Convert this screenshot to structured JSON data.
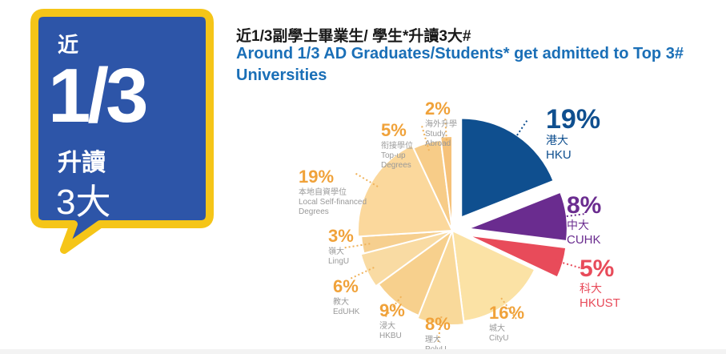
{
  "badge": {
    "near": "近",
    "fraction": "1/3",
    "admitted": "升讀",
    "top3": "3大",
    "colors": {
      "fill": "#2d55a8",
      "border": "#f5c518"
    }
  },
  "title": {
    "zh": "近1/3副學士畢業生/ 學生*升讀3大#",
    "en": "Around 1/3 AD Graduates/Students* get admitted to Top 3# Universities"
  },
  "chart_data": {
    "type": "pie",
    "title": "近1/3副學士畢業生/ 學生*升讀3大#",
    "slices": [
      {
        "pct": "19%",
        "value": 19,
        "zh": "港大",
        "en": "HKU",
        "color": "#0f4f8f"
      },
      {
        "pct": "8%",
        "value": 8,
        "zh": "中大",
        "en": "CUHK",
        "color": "#6a2c8f"
      },
      {
        "pct": "5%",
        "value": 5,
        "zh": "科大",
        "en": "HKUST",
        "color": "#e84b5a"
      },
      {
        "pct": "16%",
        "value": 16,
        "zh": "城大",
        "en": "CityU",
        "color": "#fbe2a5"
      },
      {
        "pct": "8%",
        "value": 8,
        "zh": "理大",
        "en": "PolyU",
        "color": "#f9d99a"
      },
      {
        "pct": "9%",
        "value": 9,
        "zh": "浸大",
        "en": "HKBU",
        "color": "#f7d08d"
      },
      {
        "pct": "6%",
        "value": 6,
        "zh": "教大",
        "en": "EdUHK",
        "color": "#f9dba3"
      },
      {
        "pct": "3%",
        "value": 3,
        "zh": "嶺大",
        "en": "LingU",
        "color": "#f6cf8f"
      },
      {
        "pct": "19%",
        "value": 19,
        "zh": "本地自資學位",
        "en": "Local Self-financed Degrees",
        "color": "#fbd89c"
      },
      {
        "pct": "5%",
        "value": 5,
        "zh": "衔接學位",
        "en": "Top-up Degrees",
        "color": "#f7cc88"
      },
      {
        "pct": "2%",
        "value": 2,
        "zh": "海外升學",
        "en": "Study Abroad",
        "color": "#f6c27a"
      }
    ]
  }
}
